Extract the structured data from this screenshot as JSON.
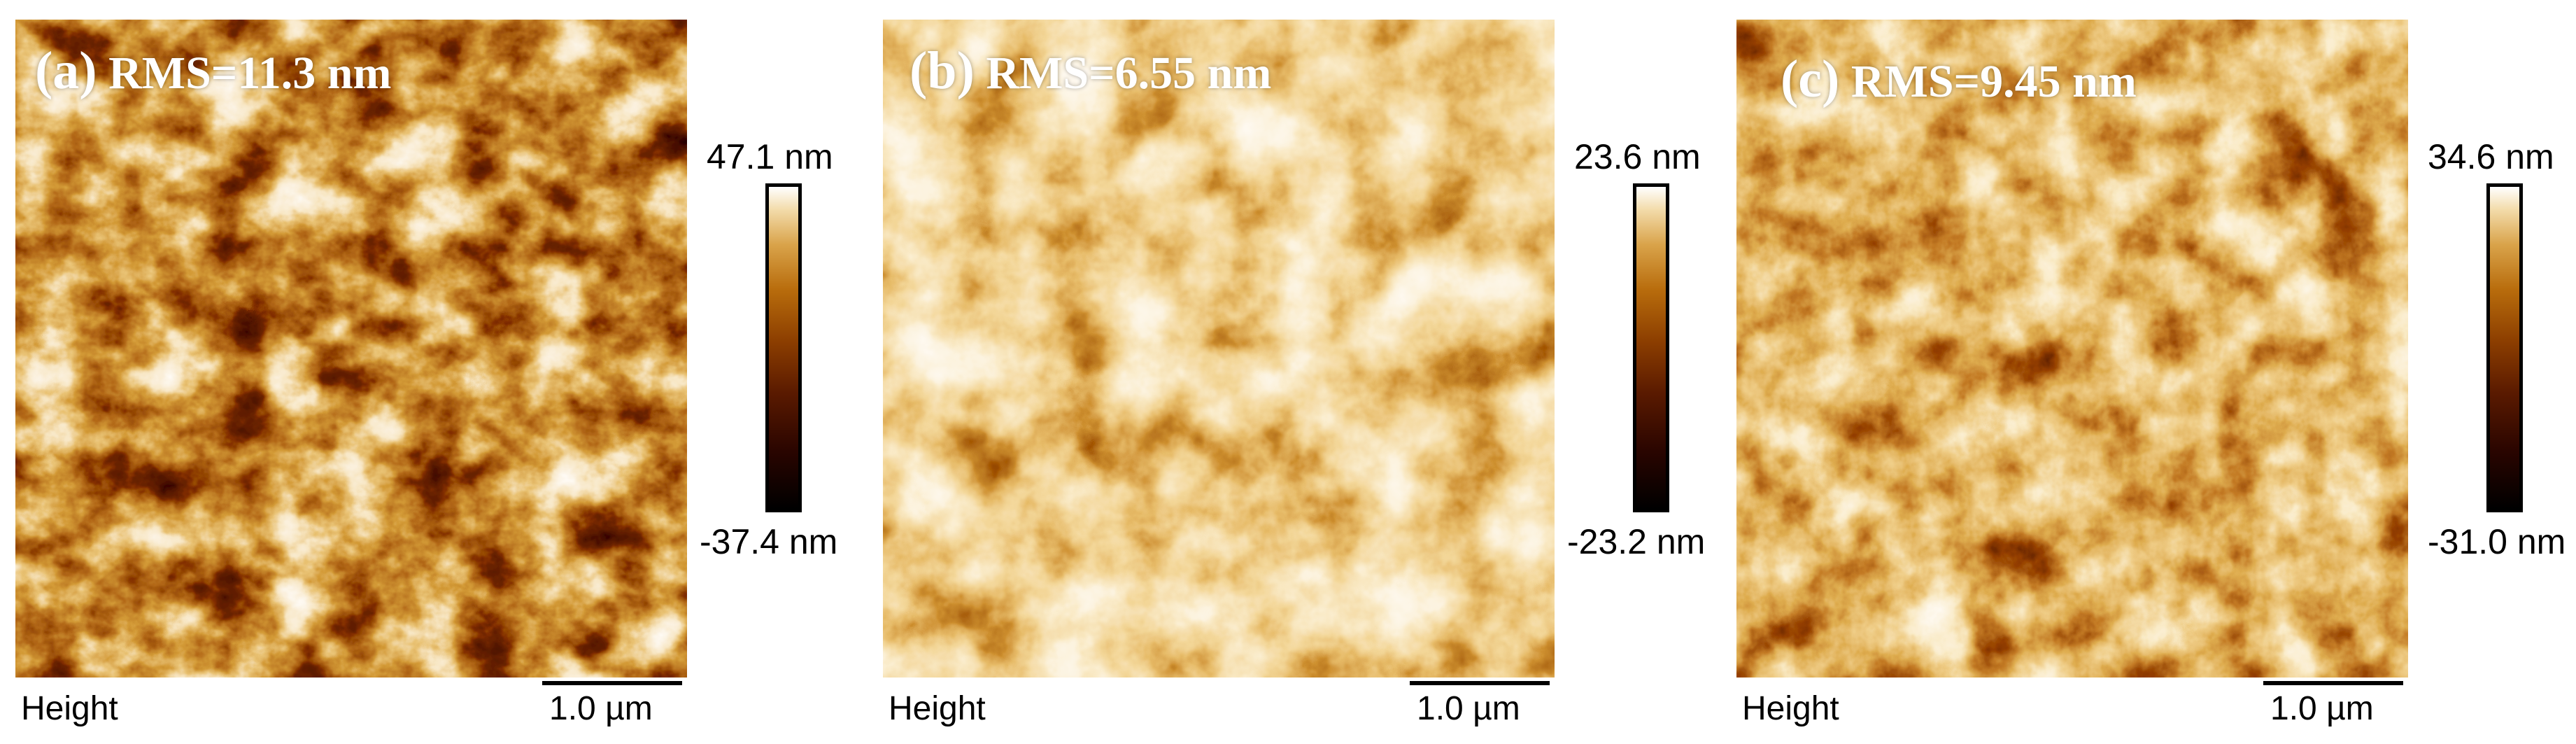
{
  "panels": [
    {
      "label_letter": "(a)",
      "label_text": "RMS=11.3 nm",
      "colorbar_max": "47.1 nm",
      "colorbar_min": "-37.4 nm",
      "footer_label": "Height",
      "scale_label": "1.0 µm"
    },
    {
      "label_letter": "(b)",
      "label_text": "RMS=6.55 nm",
      "colorbar_max": "23.6 nm",
      "colorbar_min": "-23.2 nm",
      "footer_label": "Height",
      "scale_label": "1.0 µm"
    },
    {
      "label_letter": "(c)",
      "label_text": "RMS=9.45 nm",
      "colorbar_max": "34.6 nm",
      "colorbar_min": "-31.0 nm",
      "footer_label": "Height",
      "scale_label": "1.0 µm"
    }
  ],
  "colors": {
    "colormap": [
      "#000000",
      "#2a0500",
      "#5a1a00",
      "#8c3e00",
      "#b86c0c",
      "#d9a34a",
      "#f3dcab",
      "#ffffff"
    ],
    "label_text": "#ffffff",
    "annotation_text": "#000000"
  }
}
